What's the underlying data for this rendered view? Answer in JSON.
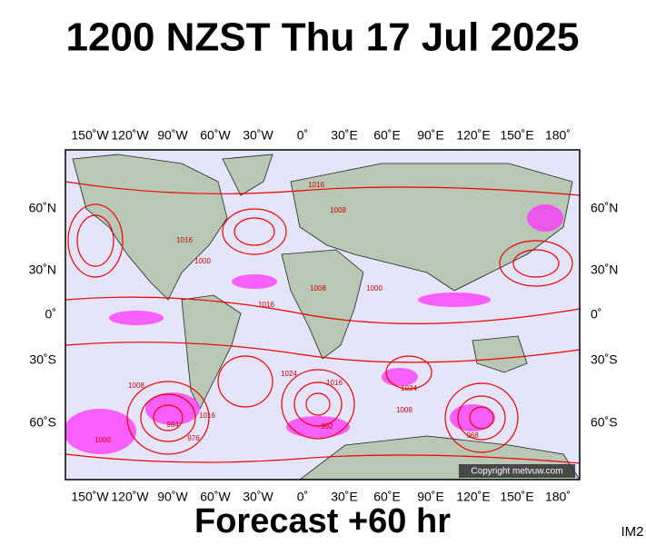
{
  "header": {
    "title": "1200 NZST Thu 17 Jul 2025"
  },
  "map": {
    "longitude_labels": [
      "150˚W",
      "120˚W",
      "90˚W",
      "60˚W",
      "30˚W",
      "0˚",
      "30˚E",
      "60˚E",
      "90˚E",
      "120˚E",
      "150˚E",
      "180˚"
    ],
    "latitude_labels": [
      "60˚N",
      "30˚N",
      "0˚",
      "30˚S",
      "60˚S"
    ],
    "isobar_labels": [
      "1016",
      "1008",
      "1016",
      "1000",
      "1016",
      "1008",
      "1024",
      "1016",
      "1008",
      "1000",
      "992",
      "984",
      "976",
      "968",
      "1000",
      "1008",
      "1024",
      "1016"
    ],
    "copyright": "Copyright metvuw.com"
  },
  "footer": {
    "forecast": "Forecast +60 hr",
    "code": "IM2"
  }
}
